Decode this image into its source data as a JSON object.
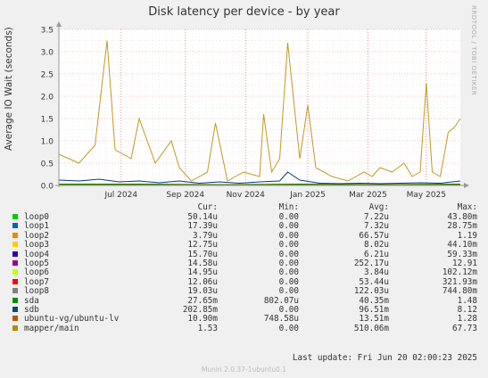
{
  "chart_data": {
    "type": "line",
    "title": "Disk latency per device - by year",
    "ylabel": "Average IO Wait (seconds)",
    "side_text": "RRDTOOL / TOBI OETIKER",
    "ylim": [
      0,
      3.5
    ],
    "yticks": [
      {
        "v": 0,
        "label": "0.0"
      },
      {
        "v": 0.5,
        "label": "0.5"
      },
      {
        "v": 1.0,
        "label": "1.0"
      },
      {
        "v": 1.5,
        "label": "1.5"
      },
      {
        "v": 2.0,
        "label": "2.0"
      },
      {
        "v": 2.5,
        "label": "2.5"
      },
      {
        "v": 3.0,
        "label": "3.0"
      },
      {
        "v": 3.5,
        "label": "3.5"
      }
    ],
    "xticks": [
      "Jul 2024",
      "Sep 2024",
      "Nov 2024",
      "Jan 2025",
      "Mar 2025",
      "May 2025"
    ],
    "grid": true,
    "series": [
      {
        "name": "mapper/main",
        "color": "#c09a20",
        "values": [
          [
            0,
            0.7
          ],
          [
            0.05,
            0.5
          ],
          [
            0.09,
            0.9
          ],
          [
            0.12,
            3.25
          ],
          [
            0.14,
            0.8
          ],
          [
            0.18,
            0.6
          ],
          [
            0.2,
            1.5
          ],
          [
            0.24,
            0.5
          ],
          [
            0.28,
            1.0
          ],
          [
            0.3,
            0.4
          ],
          [
            0.33,
            0.1
          ],
          [
            0.37,
            0.3
          ],
          [
            0.39,
            1.4
          ],
          [
            0.42,
            0.1
          ],
          [
            0.46,
            0.3
          ],
          [
            0.5,
            0.2
          ],
          [
            0.51,
            1.6
          ],
          [
            0.53,
            0.3
          ],
          [
            0.55,
            0.6
          ],
          [
            0.57,
            3.2
          ],
          [
            0.6,
            0.6
          ],
          [
            0.62,
            1.8
          ],
          [
            0.64,
            0.4
          ],
          [
            0.68,
            0.2
          ],
          [
            0.72,
            0.1
          ],
          [
            0.76,
            0.3
          ],
          [
            0.78,
            0.2
          ],
          [
            0.8,
            0.4
          ],
          [
            0.83,
            0.3
          ],
          [
            0.86,
            0.5
          ],
          [
            0.88,
            0.2
          ],
          [
            0.9,
            0.3
          ],
          [
            0.915,
            2.3
          ],
          [
            0.93,
            0.3
          ],
          [
            0.95,
            0.2
          ],
          [
            0.97,
            1.2
          ],
          [
            0.985,
            1.3
          ],
          [
            1.0,
            1.5
          ]
        ]
      },
      {
        "name": "sdb",
        "color": "#003a80",
        "values": [
          [
            0,
            0.12
          ],
          [
            0.05,
            0.1
          ],
          [
            0.1,
            0.14
          ],
          [
            0.15,
            0.08
          ],
          [
            0.2,
            0.1
          ],
          [
            0.25,
            0.06
          ],
          [
            0.3,
            0.1
          ],
          [
            0.35,
            0.05
          ],
          [
            0.4,
            0.08
          ],
          [
            0.45,
            0.05
          ],
          [
            0.5,
            0.08
          ],
          [
            0.55,
            0.1
          ],
          [
            0.57,
            0.3
          ],
          [
            0.6,
            0.12
          ],
          [
            0.65,
            0.05
          ],
          [
            0.7,
            0.04
          ],
          [
            0.75,
            0.05
          ],
          [
            0.8,
            0.04
          ],
          [
            0.85,
            0.05
          ],
          [
            0.9,
            0.06
          ],
          [
            0.95,
            0.05
          ],
          [
            1.0,
            0.1
          ]
        ]
      },
      {
        "name": "sda",
        "color": "#008000",
        "values": [
          [
            0,
            0.03
          ],
          [
            0.2,
            0.03
          ],
          [
            0.4,
            0.02
          ],
          [
            0.6,
            0.03
          ],
          [
            0.8,
            0.02
          ],
          [
            1.0,
            0.03
          ]
        ]
      },
      {
        "name": "ubuntu-vg/ubuntu-lv",
        "color": "#c06000",
        "values": [
          [
            0,
            0.01
          ],
          [
            0.5,
            0.01
          ],
          [
            1.0,
            0.01
          ]
        ]
      }
    ]
  },
  "legend": {
    "headers": {
      "cur": "Cur:",
      "min": "Min:",
      "avg": "Avg:",
      "max": "Max:"
    },
    "rows": [
      {
        "name": "loop0",
        "color": "#00cc00",
        "cur": "50.14u",
        "min": "0.00",
        "avg": "7.22u",
        "max": "43.80m"
      },
      {
        "name": "loop1",
        "color": "#0066b3",
        "cur": "17.39u",
        "min": "0.00",
        "avg": "7.32u",
        "max": "28.75m"
      },
      {
        "name": "loop2",
        "color": "#ff8000",
        "cur": "3.79u",
        "min": "0.00",
        "avg": "66.57u",
        "max": "1.19"
      },
      {
        "name": "loop3",
        "color": "#ffcc00",
        "cur": "12.75u",
        "min": "0.00",
        "avg": "8.02u",
        "max": "44.10m"
      },
      {
        "name": "loop4",
        "color": "#330099",
        "cur": "15.70u",
        "min": "0.00",
        "avg": "6.21u",
        "max": "59.33m"
      },
      {
        "name": "loop5",
        "color": "#990099",
        "cur": "14.58u",
        "min": "0.00",
        "avg": "252.17u",
        "max": "12.91"
      },
      {
        "name": "loop6",
        "color": "#ccff00",
        "cur": "14.95u",
        "min": "0.00",
        "avg": "3.84u",
        "max": "102.12m"
      },
      {
        "name": "loop7",
        "color": "#ff0000",
        "cur": "12.06u",
        "min": "0.00",
        "avg": "53.44u",
        "max": "321.93m"
      },
      {
        "name": "loop8",
        "color": "#808080",
        "cur": "19.03u",
        "min": "0.00",
        "avg": "122.03u",
        "max": "744.80m"
      },
      {
        "name": "sda",
        "color": "#008f00",
        "cur": "27.65m",
        "min": "802.07u",
        "avg": "40.35m",
        "max": "1.48"
      },
      {
        "name": "sdb",
        "color": "#00487d",
        "cur": "202.85m",
        "min": "0.00",
        "avg": "96.51m",
        "max": "8.12"
      },
      {
        "name": "ubuntu-vg/ubuntu-lv",
        "color": "#b35a00",
        "cur": "10.90m",
        "min": "748.58u",
        "avg": "13.51m",
        "max": "1.28"
      },
      {
        "name": "mapper/main",
        "color": "#b38f00",
        "cur": "1.53",
        "min": "0.00",
        "avg": "510.06m",
        "max": "67.73"
      }
    ]
  },
  "footer": {
    "last_update": "Last update: Fri Jun 20 02:00:23 2025",
    "munin": "Munin 2.0.37-1ubuntu0.1"
  }
}
